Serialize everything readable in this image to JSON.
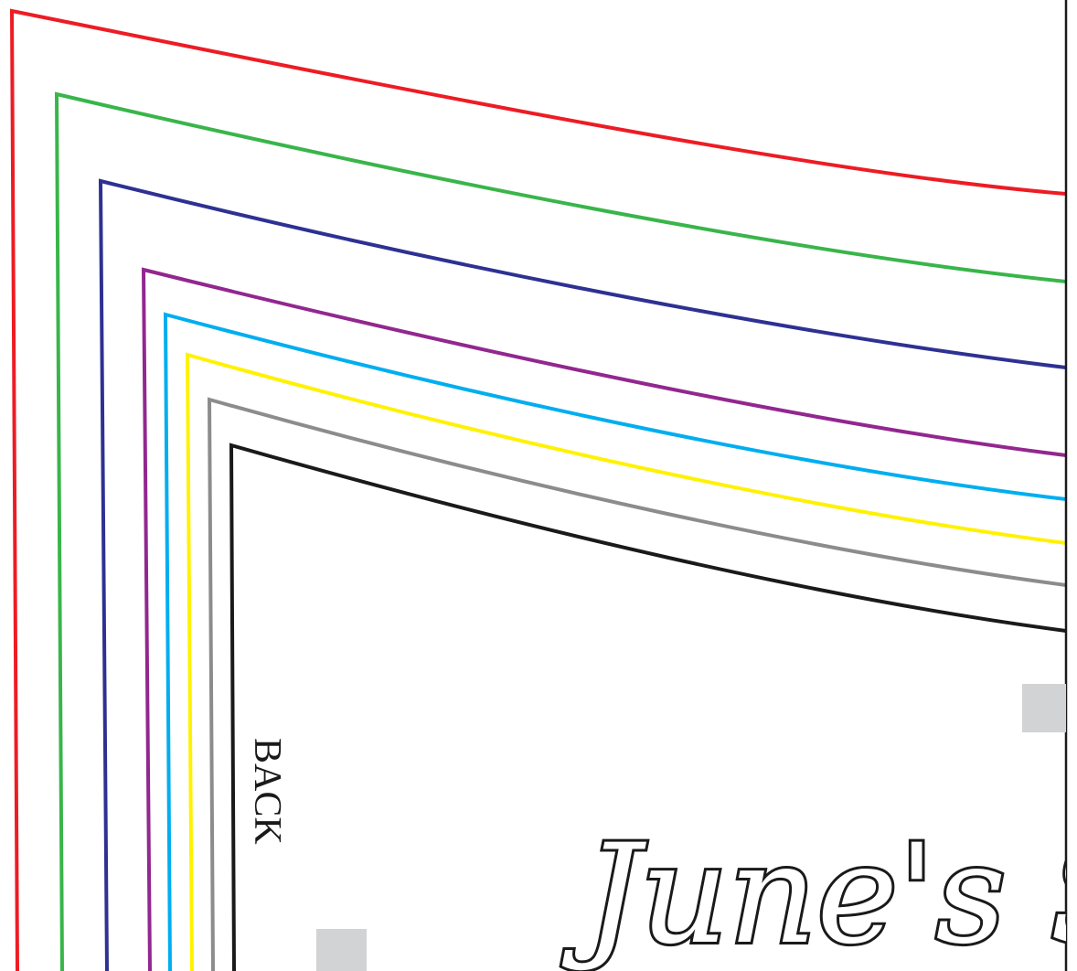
{
  "pattern": {
    "piece_label": "BACK",
    "brand_text": "June's Sew",
    "size_lines": [
      {
        "name": "red",
        "color": "#ed1c24"
      },
      {
        "name": "green",
        "color": "#39b54a"
      },
      {
        "name": "navy",
        "color": "#2e3192"
      },
      {
        "name": "purple",
        "color": "#92278f"
      },
      {
        "name": "cyan",
        "color": "#00aeef"
      },
      {
        "name": "yellow",
        "color": "#fff200"
      },
      {
        "name": "gray",
        "color": "#8c8c8c"
      },
      {
        "name": "black",
        "color": "#1a1a1a"
      }
    ],
    "marker_color": "#d1d3d4",
    "edge_color": "#1a1a1a"
  }
}
